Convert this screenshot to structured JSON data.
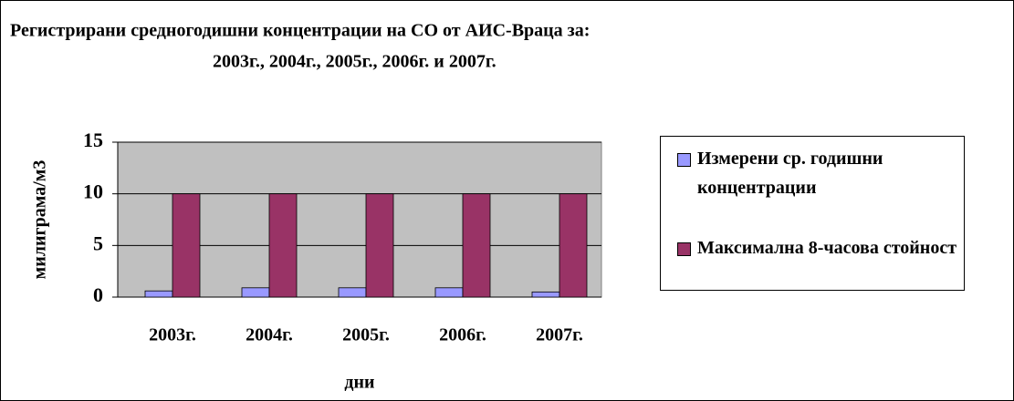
{
  "chart_data": {
    "type": "bar",
    "title": [
      "Регистрирани средногодишни концентрации на СО от АИС-Враца за:",
      "2003г., 2004г., 2005г., 2006г. и 2007г."
    ],
    "y_label": "милиграма/м3",
    "x_label": "дни",
    "categories": [
      "2003г.",
      "2004г.",
      "2005г.",
      "2006г.",
      "2007г."
    ],
    "series": [
      {
        "name": "Измерени ср. годишни концентрации",
        "color": "#9999ff",
        "values": [
          0.6,
          0.9,
          0.9,
          0.9,
          0.5
        ]
      },
      {
        "name": "Максимална 8-часова стойност",
        "color": "#993366",
        "values": [
          10,
          10,
          10,
          10,
          10
        ]
      }
    ],
    "ylim": [
      0,
      15
    ],
    "yticks": [
      0,
      5,
      10,
      15
    ],
    "grid": true,
    "legend": "right"
  }
}
